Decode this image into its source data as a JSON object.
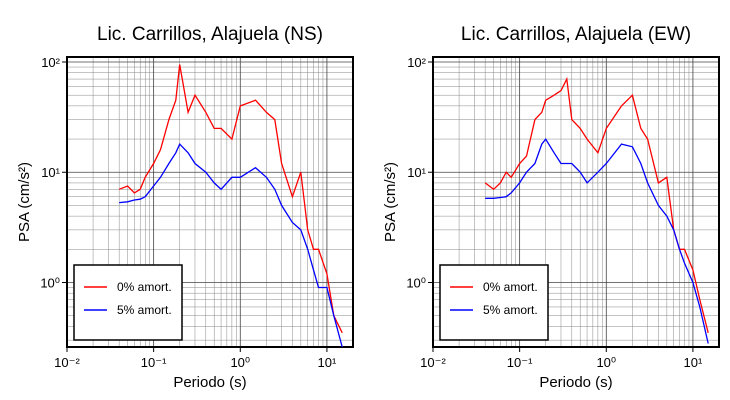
{
  "chart_data": [
    {
      "type": "line",
      "title": "Lic. Carrillos, Alajuela (NS)",
      "x_label": "Periodo (s)",
      "y_label": "PSA (cm/s²)",
      "x": [
        0.04,
        0.05,
        0.06,
        0.07,
        0.08,
        0.1,
        0.12,
        0.15,
        0.18,
        0.2,
        0.25,
        0.3,
        0.4,
        0.5,
        0.6,
        0.8,
        1,
        1.5,
        2,
        2.5,
        3,
        4,
        5,
        6,
        7,
        8,
        10,
        12,
        15
      ],
      "series": [
        {
          "name": "0% amort.",
          "color": "#ff0000",
          "values": [
            7,
            7.5,
            6.5,
            7,
            9,
            12,
            16,
            30,
            45,
            95,
            35,
            50,
            35,
            25,
            25,
            20,
            40,
            45,
            35,
            30,
            12,
            6,
            10,
            3,
            2,
            2,
            1.2,
            0.5,
            0.35
          ]
        },
        {
          "name": "5% amort.",
          "color": "#0000ff",
          "values": [
            5.3,
            5.4,
            5.6,
            5.7,
            6,
            7.5,
            9,
            12,
            15,
            18,
            15,
            12,
            10,
            8,
            7,
            9,
            9,
            11,
            9,
            7,
            5,
            3.5,
            3,
            2,
            1.3,
            0.9,
            0.9,
            0.5,
            0.26
          ]
        }
      ],
      "log_x": true,
      "log_y": true,
      "grid": true,
      "legend": "lower left",
      "xlim": [
        0.01,
        20
      ],
      "ylim": [
        0.26,
        111
      ],
      "xticks": [
        {
          "value": 0.01,
          "label": "10⁻²"
        },
        {
          "value": 0.1,
          "label": "10⁻¹"
        },
        {
          "value": 1,
          "label": "10⁰"
        },
        {
          "value": 10,
          "label": "10¹"
        }
      ],
      "yticks": [
        {
          "value": 1,
          "label": "10⁰"
        },
        {
          "value": 10,
          "label": "10¹"
        },
        {
          "value": 100,
          "label": "10²"
        }
      ]
    },
    {
      "type": "line",
      "title": "Lic. Carrillos, Alajuela (EW)",
      "x_label": "Periodo (s)",
      "y_label": "PSA (cm/s²)",
      "x": [
        0.04,
        0.05,
        0.06,
        0.07,
        0.08,
        0.1,
        0.12,
        0.15,
        0.18,
        0.2,
        0.25,
        0.3,
        0.35,
        0.4,
        0.5,
        0.6,
        0.8,
        1,
        1.5,
        2,
        2.5,
        3,
        4,
        5,
        6,
        7,
        8,
        10,
        12,
        15
      ],
      "series": [
        {
          "name": "0% amort.",
          "color": "#ff0000",
          "values": [
            8,
            7,
            8,
            10,
            9,
            12,
            14,
            30,
            35,
            45,
            50,
            55,
            70,
            30,
            25,
            20,
            15,
            25,
            40,
            50,
            25,
            20,
            8,
            9,
            3,
            2,
            2,
            1.3,
            0.7,
            0.35
          ]
        },
        {
          "name": "5% amort.",
          "color": "#0000ff",
          "values": [
            5.8,
            5.8,
            5.9,
            6,
            6.5,
            8,
            10,
            12,
            18,
            20,
            15,
            12,
            12,
            12,
            10,
            8,
            10,
            12,
            18,
            17,
            12,
            8,
            5,
            4,
            3,
            2,
            1.5,
            1,
            0.6,
            0.28
          ]
        }
      ],
      "log_x": true,
      "log_y": true,
      "grid": true,
      "legend": "lower left",
      "xlim": [
        0.01,
        20
      ],
      "ylim": [
        0.26,
        111
      ],
      "xticks": [
        {
          "value": 0.01,
          "label": "10⁻²"
        },
        {
          "value": 0.1,
          "label": "10⁻¹"
        },
        {
          "value": 1,
          "label": "10⁰"
        },
        {
          "value": 10,
          "label": "10¹"
        }
      ],
      "yticks": [
        {
          "value": 1,
          "label": "10⁰"
        },
        {
          "value": 10,
          "label": "10¹"
        },
        {
          "value": 100,
          "label": "10²"
        }
      ]
    }
  ]
}
